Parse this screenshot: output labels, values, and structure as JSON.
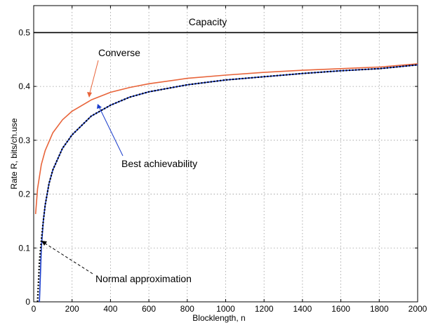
{
  "chart_data": {
    "type": "line",
    "title": "",
    "xlabel": "Blocklength, n",
    "ylabel": "Rate R,  bits/ch.use",
    "xlim": [
      0,
      2000
    ],
    "ylim": [
      0,
      0.55
    ],
    "xticks": [
      0,
      200,
      400,
      600,
      800,
      1000,
      1200,
      1400,
      1600,
      1800,
      2000
    ],
    "yticks": [
      0,
      0.1,
      0.2,
      0.3,
      0.4,
      0.5
    ],
    "xtick_labels": [
      "0",
      "200",
      "400",
      "600",
      "800",
      "1000",
      "1200",
      "1400",
      "1600",
      "1800",
      "2000"
    ],
    "ytick_labels": [
      "0",
      "0.1",
      "0.2",
      "0.3",
      "0.4",
      "0.5"
    ],
    "grid": true,
    "legend": "none",
    "series": [
      {
        "name": "Capacity",
        "color": "#000000",
        "style": "solid",
        "x": [
          0,
          2000
        ],
        "y": [
          0.5,
          0.5
        ]
      },
      {
        "name": "Converse",
        "color": "#e8643a",
        "style": "solid",
        "x": [
          10,
          20,
          40,
          60,
          100,
          150,
          200,
          300,
          400,
          500,
          600,
          800,
          1000,
          1200,
          1400,
          1600,
          1800,
          2000
        ],
        "y": [
          0.163,
          0.21,
          0.255,
          0.281,
          0.314,
          0.338,
          0.354,
          0.375,
          0.389,
          0.398,
          0.405,
          0.415,
          0.421,
          0.426,
          0.43,
          0.433,
          0.436,
          0.442
        ]
      },
      {
        "name": "Best achievability",
        "color": "#1a3dcc",
        "style": "solid",
        "x": [
          30,
          40,
          50,
          60,
          80,
          100,
          150,
          200,
          300,
          400,
          500,
          600,
          800,
          1000,
          1200,
          1400,
          1600,
          1800,
          2000
        ],
        "y": [
          0.0,
          0.1,
          0.15,
          0.18,
          0.22,
          0.245,
          0.285,
          0.31,
          0.345,
          0.365,
          0.38,
          0.39,
          0.403,
          0.412,
          0.418,
          0.424,
          0.429,
          0.433,
          0.44
        ]
      },
      {
        "name": "Normal approximation",
        "color": "#000000",
        "style": "dotted",
        "x": [
          20,
          30,
          40,
          50,
          60,
          80,
          100,
          150,
          200,
          300,
          400,
          500,
          600,
          800,
          1000,
          1200,
          1400,
          1600,
          1800,
          2000
        ],
        "y": [
          0.0,
          0.075,
          0.115,
          0.15,
          0.18,
          0.22,
          0.245,
          0.285,
          0.31,
          0.345,
          0.365,
          0.38,
          0.39,
          0.403,
          0.412,
          0.418,
          0.424,
          0.429,
          0.433,
          0.44
        ]
      }
    ],
    "annotations": [
      {
        "text": "Capacity",
        "x": 1000,
        "y": 0.5
      },
      {
        "text": "Converse",
        "x": 280,
        "y": 0.37
      },
      {
        "text": "Best achievability",
        "x": 330,
        "y": 0.36
      },
      {
        "text": "Normal approximation",
        "x": 40,
        "y": 0.115
      }
    ]
  }
}
